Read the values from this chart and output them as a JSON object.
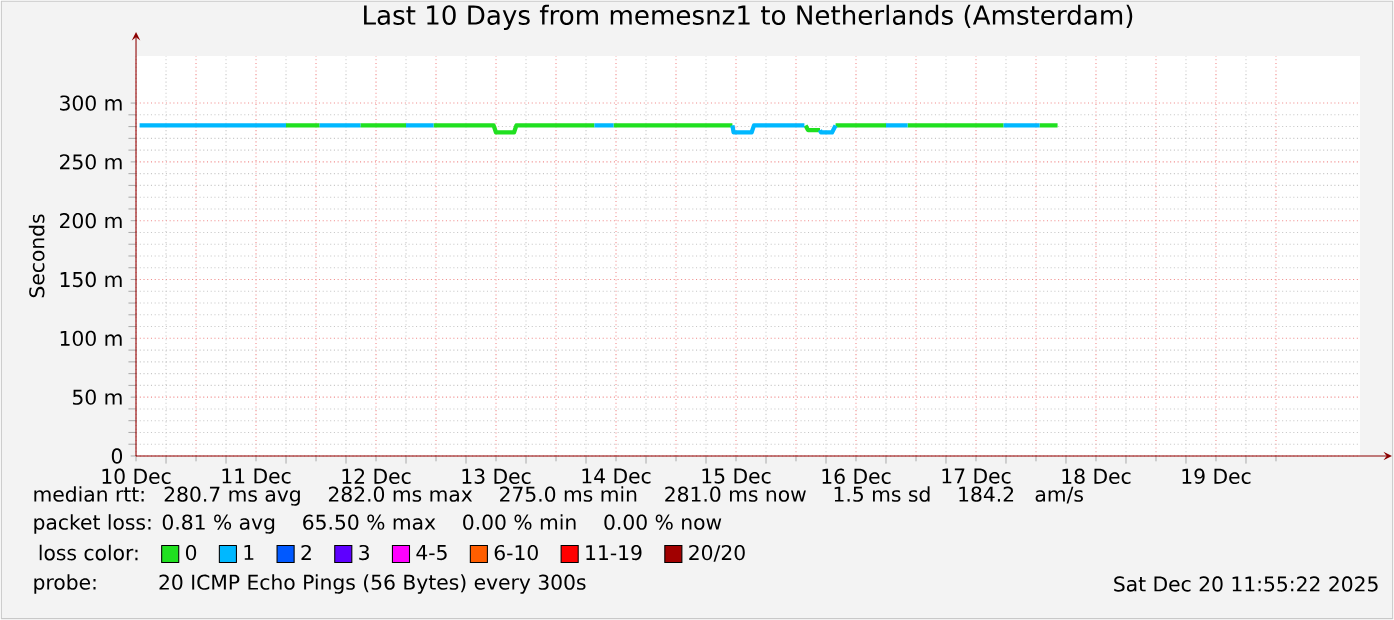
{
  "chart_data": {
    "type": "line",
    "title": "Last 10 Days from memesnz1 to Netherlands (Amsterdam)",
    "ylabel": "Seconds",
    "legend_title": "loss color:",
    "xlim": [
      "2025-12-10T12:00",
      "2025-12-20T16:48"
    ],
    "xticks": [
      {
        "value": "2025-12-10T12:00",
        "label": "10 Dec"
      },
      {
        "value": "2025-12-11T00:00",
        "label": null
      },
      {
        "value": "2025-12-11T12:00",
        "label": "11 Dec"
      },
      {
        "value": "2025-12-12T00:00",
        "label": null
      },
      {
        "value": "2025-12-12T12:00",
        "label": "12 Dec"
      },
      {
        "value": "2025-12-13T00:00",
        "label": null
      },
      {
        "value": "2025-12-13T12:00",
        "label": "13 Dec"
      },
      {
        "value": "2025-12-14T00:00",
        "label": null
      },
      {
        "value": "2025-12-14T12:00",
        "label": "14 Dec"
      },
      {
        "value": "2025-12-15T00:00",
        "label": null
      },
      {
        "value": "2025-12-15T12:00",
        "label": "15 Dec"
      },
      {
        "value": "2025-12-16T00:00",
        "label": null
      },
      {
        "value": "2025-12-16T12:00",
        "label": "16 Dec"
      },
      {
        "value": "2025-12-17T00:00",
        "label": null
      },
      {
        "value": "2025-12-17T12:00",
        "label": "17 Dec"
      },
      {
        "value": "2025-12-18T00:00",
        "label": null
      },
      {
        "value": "2025-12-18T12:00",
        "label": "18 Dec"
      },
      {
        "value": "2025-12-19T00:00",
        "label": null
      },
      {
        "value": "2025-12-19T12:00",
        "label": "19 Dec"
      },
      {
        "value": "2025-12-20T00:00",
        "label": null
      }
    ],
    "ylim": [
      0,
      340
    ],
    "yticks": [
      0,
      {
        "value": 50,
        "label": "50 m"
      },
      {
        "value": 100,
        "label": "100 m"
      },
      {
        "value": 150,
        "label": "150 m"
      },
      {
        "value": 200,
        "label": "200 m"
      },
      {
        "value": 250,
        "label": "250 m"
      },
      {
        "value": 300,
        "label": "300 m"
      }
    ],
    "grid": true,
    "legend": "bottom",
    "marker": "none",
    "line_style": "solid",
    "series": [
      {
        "name": "0",
        "color": "#20e020",
        "x": [
          "2025-12-11T18:00",
          "2025-12-12T00:43",
          "2025-12-12T02:24",
          "2025-12-12T08:53",
          "2025-12-12T18:00",
          "2025-12-12T19:12",
          "2025-12-12T23:31",
          "2025-12-13T11:31",
          "2025-12-13T12:00",
          "2025-12-13T15:36",
          "2025-12-13T16:05",
          "2025-12-14T07:41",
          "2025-12-14T09:36",
          "2025-12-14T11:31",
          "2025-12-15T11:17",
          "2025-12-15T12:00",
          "2025-12-16T01:55",
          "2025-12-16T02:24",
          "2025-12-16T04:48",
          "2025-12-16T05:30",
          "2025-12-16T07:55",
          "2025-12-16T18:00",
          "2025-12-16T19:12",
          "2025-12-16T22:19",
          "2025-12-17T17:31",
          "2025-12-17T19:12",
          "2025-12-18T00:43",
          "2025-12-18T04:19"
        ],
        "values": [
          281,
          281,
          null,
          281,
          281,
          null,
          281,
          281,
          275,
          275,
          281,
          281,
          null,
          281,
          281,
          null,
          281,
          277,
          277,
          null,
          281,
          281,
          null,
          281,
          281,
          null,
          281,
          281
        ]
      },
      {
        "name": "1",
        "color": "#00b8ff",
        "x": [
          "2025-12-10T12:43",
          "2025-12-11T18:00",
          "2025-12-11T19:12",
          "2025-12-12T00:43",
          "2025-12-12T08:53",
          "2025-12-12T09:36",
          "2025-12-12T18:00",
          "2025-12-12T23:31",
          "2025-12-13T00:00",
          "2025-12-14T07:41",
          "2025-12-14T11:31",
          "2025-12-14T12:00",
          "2025-12-15T11:17",
          "2025-12-15T11:31",
          "2025-12-15T15:07",
          "2025-12-15T15:36",
          "2025-12-16T01:41",
          "2025-12-16T02:00",
          "2025-12-16T04:48",
          "2025-12-16T05:00",
          "2025-12-16T07:12",
          "2025-12-16T07:55",
          "2025-12-16T09:36",
          "2025-12-16T18:00",
          "2025-12-16T22:19",
          "2025-12-17T00:00",
          "2025-12-17T17:31",
          "2025-12-18T00:43"
        ],
        "values": [
          281,
          281,
          null,
          281,
          281,
          null,
          281,
          281,
          null,
          281,
          281,
          null,
          281,
          275,
          275,
          281,
          281,
          null,
          277,
          275,
          275,
          281,
          null,
          281,
          281,
          null,
          281,
          281
        ]
      },
      {
        "name": "2",
        "color": "#0059ff"
      },
      {
        "name": "3",
        "color": "#5e00ff"
      },
      {
        "name": "4-5",
        "color": "#ff00ff"
      },
      {
        "name": "6-10",
        "color": "#ff5e00"
      },
      {
        "name": "11-19",
        "color": "#ff0000"
      },
      {
        "name": "20/20",
        "color": "#a10000"
      }
    ],
    "annotations": [
      "median rtt:  280.7 ms avg    282.0 ms max    275.0 ms min    281.0 ms now    1.5 ms sd    184.2   am/s",
      "packet loss: 0.81 % avg    65.50 % max    0.00 % min    0.00 % now",
      "probe:       20 ICMP Echo Pings (56 Bytes) every 300s",
      "Sat Dec 20 11:55:22 2025"
    ]
  }
}
